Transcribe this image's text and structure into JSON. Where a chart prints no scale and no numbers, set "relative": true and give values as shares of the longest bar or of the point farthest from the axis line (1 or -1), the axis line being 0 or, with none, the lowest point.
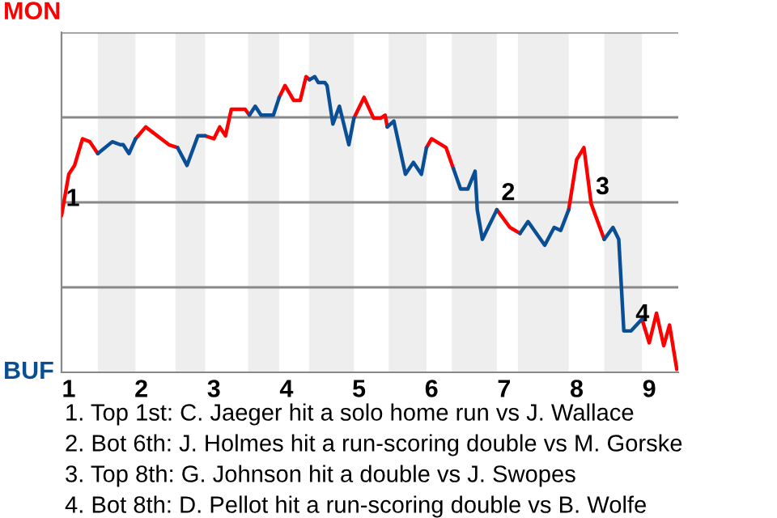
{
  "chart_data": {
    "type": "line",
    "relative": true,
    "x": [
      0.9,
      1.0,
      1.08,
      1.19,
      1.29,
      1.4,
      1.6,
      1.71,
      1.75,
      1.83,
      1.92,
      2.06,
      2.38,
      2.5,
      2.63,
      2.78,
      2.88,
      3.0,
      3.08,
      3.16,
      3.24,
      3.43,
      3.49,
      3.57,
      3.65,
      3.82,
      3.9,
      3.98,
      4.1,
      4.19,
      4.27,
      4.32,
      4.39,
      4.44,
      4.53,
      4.56,
      4.64,
      4.73,
      4.86,
      4.93,
      5.07,
      5.2,
      5.3,
      5.36,
      5.39,
      5.48,
      5.64,
      5.75,
      5.86,
      5.93,
      6.0,
      6.2,
      6.3,
      6.4,
      6.5,
      6.6,
      6.63,
      6.7,
      6.78,
      6.9,
      7.08,
      7.22,
      7.33,
      7.56,
      7.69,
      7.78,
      7.89,
      8.0,
      8.1,
      8.2,
      8.38,
      8.5,
      8.58,
      8.65,
      8.75,
      8.9,
      9.0,
      9.1,
      9.2,
      9.28,
      9.38
    ],
    "series": [
      {
        "name": "MON",
        "color": "#ff0000",
        "values": [
          0.53,
          0.67,
          0.7,
          0.79,
          0.78,
          0.74,
          null,
          null,
          null,
          null,
          0.79,
          0.83,
          0.77,
          0.76,
          null,
          null,
          0.8,
          0.79,
          0.83,
          0.8,
          0.89,
          0.89,
          0.87,
          null,
          null,
          null,
          0.93,
          0.97,
          0.92,
          0.92,
          1.0,
          0.99,
          null,
          null,
          null,
          null,
          null,
          null,
          null,
          0.86,
          0.93,
          0.86,
          0.86,
          0.87,
          0.83,
          null,
          null,
          null,
          null,
          0.76,
          0.79,
          0.76,
          0.69,
          null,
          null,
          null,
          null,
          null,
          null,
          0.55,
          0.49,
          0.47,
          null,
          null,
          null,
          null,
          0.55,
          0.72,
          0.76,
          0.57,
          0.45,
          null,
          null,
          null,
          null,
          0.18,
          0.1,
          0.2,
          0.09,
          0.16,
          0.01
        ]
      },
      {
        "name": "BUF",
        "color": "#0a4f96",
        "values": [
          null,
          null,
          null,
          null,
          null,
          0.74,
          0.78,
          0.77,
          0.77,
          0.74,
          0.79,
          null,
          null,
          0.76,
          0.7,
          0.8,
          0.8,
          null,
          null,
          null,
          null,
          null,
          0.87,
          0.9,
          0.87,
          0.87,
          0.93,
          null,
          null,
          null,
          null,
          0.99,
          1.0,
          0.98,
          0.98,
          0.97,
          0.84,
          0.9,
          0.77,
          0.86,
          null,
          null,
          null,
          null,
          0.83,
          0.85,
          0.67,
          0.71,
          0.67,
          0.76,
          null,
          null,
          0.69,
          0.62,
          0.62,
          0.68,
          0.55,
          0.45,
          0.49,
          0.55,
          null,
          0.47,
          0.51,
          0.43,
          0.49,
          0.48,
          0.55,
          null,
          null,
          null,
          0.45,
          0.49,
          0.45,
          0.14,
          0.14,
          0.18,
          null,
          null,
          null,
          null,
          null
        ]
      }
    ],
    "xlim": [
      0.9,
      9.4
    ],
    "xticks": [
      1,
      2,
      3,
      4,
      5,
      6,
      7,
      8,
      9
    ],
    "tick_labels": "x",
    "grid": "y",
    "bands": [
      {
        "axis": "x",
        "from": 1.4,
        "to": 1.92,
        "color": "#eeeeee"
      },
      {
        "axis": "x",
        "from": 2.47,
        "to": 2.88,
        "color": "#eeeeee"
      },
      {
        "axis": "x",
        "from": 3.47,
        "to": 3.9,
        "color": "#eeeeee"
      },
      {
        "axis": "x",
        "from": 4.31,
        "to": 4.93,
        "color": "#eeeeee"
      },
      {
        "axis": "x",
        "from": 5.41,
        "to": 5.93,
        "color": "#eeeeee"
      },
      {
        "axis": "x",
        "from": 6.28,
        "to": 6.9,
        "color": "#eeeeee"
      },
      {
        "axis": "x",
        "from": 7.19,
        "to": 7.89,
        "color": "#eeeeee"
      },
      {
        "axis": "x",
        "from": 8.38,
        "to": 8.9,
        "color": "#eeeeee"
      }
    ],
    "annotations": [
      {
        "text": "1",
        "x": 0.9,
        "y": 0.53
      },
      {
        "text": "2",
        "x": 6.9,
        "y": 0.55
      },
      {
        "text": "3",
        "x": 8.2,
        "y": 0.57
      },
      {
        "text": "4",
        "x": 8.75,
        "y": 0.14
      },
      "1. Top 1st: C. Jaeger hit a solo home run vs J. Wallace",
      "2. Bot 6th: J. Holmes hit a run-scoring double vs M. Gorske",
      "3. Top 8th: G. Johnson hit a double vs J. Swopes",
      "4. Bot 8th: D. Pellot hit a run-scoring double vs B. Wolfe"
    ]
  }
}
